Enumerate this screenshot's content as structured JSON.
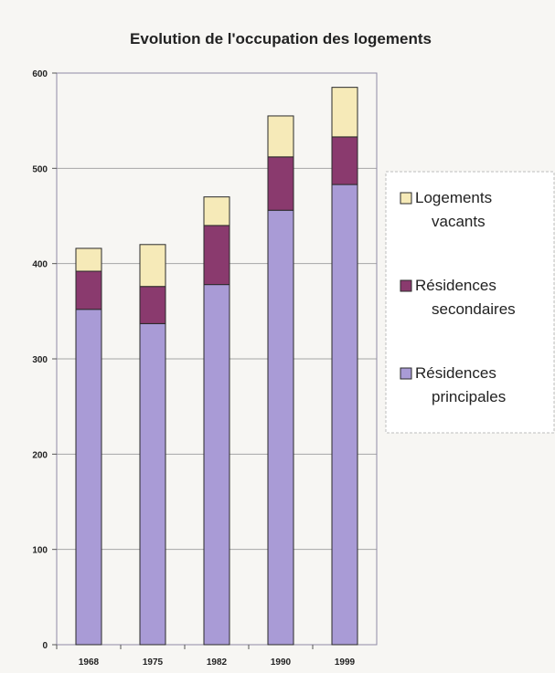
{
  "chart_data": {
    "type": "bar",
    "stacked": true,
    "title": "Evolution de l'occupation des logements",
    "xlabel": "",
    "ylabel": "",
    "categories": [
      "1968",
      "1975",
      "1982",
      "1990",
      "1999"
    ],
    "ylim": [
      0,
      600
    ],
    "yticks": [
      "0",
      "100",
      "200",
      "300",
      "400",
      "500",
      "600"
    ],
    "grid": true,
    "legend_position": "right",
    "series": [
      {
        "name": "Résidences principales",
        "legend_lines": [
          "Résidences",
          "principales"
        ],
        "values": [
          352,
          337,
          378,
          456,
          483
        ],
        "color": "#a99bd6"
      },
      {
        "name": "Résidences secondaires",
        "legend_lines": [
          "Résidences",
          "secondaires"
        ],
        "values": [
          40,
          39,
          62,
          56,
          50
        ],
        "color": "#8a3a6e"
      },
      {
        "name": "Logements vacants",
        "legend_lines": [
          "Logements",
          "vacants"
        ],
        "values": [
          24,
          44,
          30,
          43,
          52
        ],
        "color": "#f6eab8"
      }
    ]
  }
}
